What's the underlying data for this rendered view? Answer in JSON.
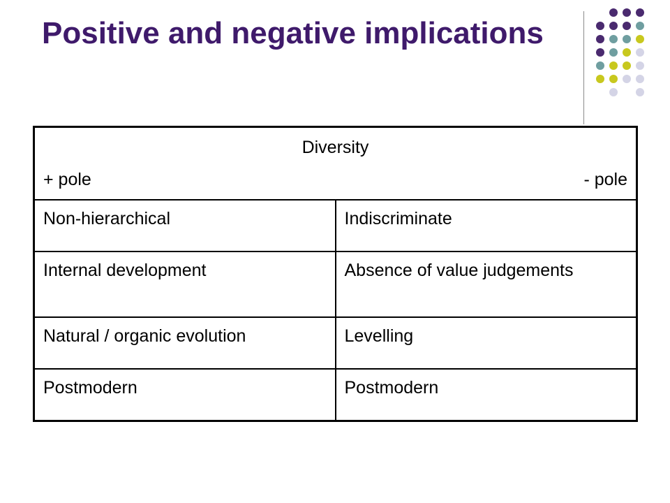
{
  "title": "Positive and negative implications",
  "table": {
    "heading": "Diversity",
    "left_pole": "+ pole",
    "right_pole": "- pole",
    "rows": [
      [
        "Non-hierarchical",
        "Indiscriminate"
      ],
      [
        "Internal development",
        "Absence of value judgements"
      ],
      [
        "Natural / organic evolution",
        "Levelling"
      ],
      [
        "Postmodern",
        "Postmodern"
      ]
    ]
  },
  "decoration": {
    "colors": {
      "purple": "#4a2a6f",
      "teal": "#6f9ea0",
      "olive": "#c8c81e",
      "lavender": "#d4d4e6",
      "title": "#3f1a6b"
    }
  }
}
